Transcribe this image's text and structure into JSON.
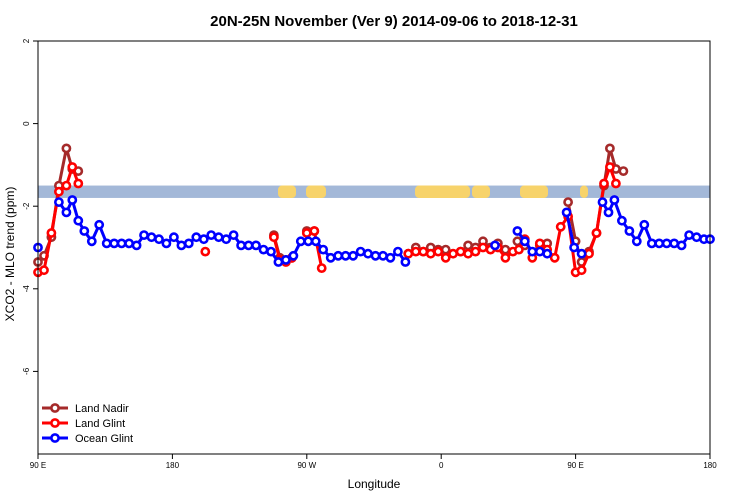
{
  "chart_data": {
    "type": "line",
    "title": "20N-25N November (Ver 9)   2014-09-06 to 2018-12-31",
    "xlabel": "Longitude",
    "ylabel": "XCO2 - MLO trend (ppm)",
    "xlim": [
      90,
      540
    ],
    "ylim": [
      -8,
      2
    ],
    "x_ticks": [
      {
        "value": 90,
        "label": "90 E"
      },
      {
        "value": 180,
        "label": "180"
      },
      {
        "value": 270,
        "label": "90 W"
      },
      {
        "value": 360,
        "label": "0"
      },
      {
        "value": 450,
        "label": "90 E"
      },
      {
        "value": 540,
        "label": "180"
      }
    ],
    "y_ticks": [
      {
        "value": 2,
        "label": "2"
      },
      {
        "value": 0,
        "label": "0"
      },
      {
        "value": -2,
        "label": "-2"
      },
      {
        "value": -4,
        "label": "-4"
      },
      {
        "value": -6,
        "label": "-6"
      }
    ],
    "legend_position": "bottom-left",
    "map_strip": {
      "ymin": -1.8,
      "ymax": -1.5,
      "ocean_color": "#a3b8d8",
      "land_color": "#f7d36b"
    },
    "series": [
      {
        "name": "Land Nadir",
        "color": "#a52a2a",
        "segments": [
          [
            [
              90,
              -3.35
            ],
            [
              94,
              -3.2
            ],
            [
              99,
              -2.75
            ],
            [
              104,
              -1.5
            ],
            [
              109,
              -0.6
            ],
            [
              113,
              -1.1
            ],
            [
              117,
              -1.15
            ]
          ],
          [
            [
              248,
              -2.7
            ],
            [
              252,
              -3.25
            ],
            [
              256,
              -3.3
            ],
            [
              260,
              -3.25
            ]
          ],
          [
            [
              270,
              -2.6
            ],
            [
              275,
              -2.6
            ]
          ],
          [
            [
              338,
              -3.15
            ],
            [
              343,
              -3.0
            ],
            [
              348,
              -3.1
            ],
            [
              353,
              -3.0
            ],
            [
              358,
              -3.05
            ],
            [
              363,
              -3.05
            ]
          ],
          [
            [
              373,
              -3.1
            ],
            [
              378,
              -2.95
            ],
            [
              383,
              -3.0
            ],
            [
              388,
              -2.85
            ],
            [
              393,
              -3.0
            ],
            [
              398,
              -2.9
            ],
            [
              403,
              -3.05
            ]
          ],
          [
            [
              411,
              -2.85
            ],
            [
              416,
              -2.95
            ]
          ],
          [
            [
              426,
              -2.95
            ],
            [
              431,
              -2.9
            ]
          ],
          [
            [
              445,
              -1.9
            ],
            [
              450,
              -2.85
            ],
            [
              454,
              -3.35
            ],
            [
              459,
              -3.1
            ],
            [
              464,
              -2.65
            ],
            [
              469,
              -1.5
            ],
            [
              473,
              -0.6
            ],
            [
              477,
              -1.1
            ],
            [
              482,
              -1.15
            ]
          ]
        ]
      },
      {
        "name": "Land Glint",
        "color": "#ff0000",
        "segments": [
          [
            [
              90,
              -3.6
            ],
            [
              94,
              -3.55
            ],
            [
              99,
              -2.65
            ],
            [
              104,
              -1.65
            ],
            [
              109,
              -1.5
            ],
            [
              113,
              -1.05
            ],
            [
              117,
              -1.45
            ]
          ],
          [
            [
              202,
              -3.1
            ]
          ],
          [
            [
              248,
              -2.75
            ],
            [
              252,
              -3.3
            ],
            [
              256,
              -3.35
            ],
            [
              260,
              -3.25
            ]
          ],
          [
            [
              270,
              -2.65
            ],
            [
              275,
              -2.6
            ],
            [
              280,
              -3.5
            ]
          ],
          [
            [
              338,
              -3.15
            ],
            [
              343,
              -3.1
            ],
            [
              348,
              -3.1
            ],
            [
              353,
              -3.15
            ],
            [
              358,
              -3.1
            ],
            [
              363,
              -3.25
            ],
            [
              368,
              -3.15
            ],
            [
              373,
              -3.1
            ],
            [
              378,
              -3.15
            ],
            [
              383,
              -3.1
            ],
            [
              388,
              -3.0
            ],
            [
              393,
              -3.05
            ],
            [
              398,
              -3.0
            ],
            [
              403,
              -3.25
            ],
            [
              408,
              -3.1
            ],
            [
              412,
              -3.05
            ],
            [
              416,
              -2.8
            ]
          ],
          [
            [
              421,
              -3.25
            ],
            [
              426,
              -2.9
            ],
            [
              431,
              -3.05
            ],
            [
              436,
              -3.25
            ],
            [
              440,
              -2.5
            ],
            [
              445,
              -2.25
            ],
            [
              450,
              -3.6
            ],
            [
              454,
              -3.55
            ],
            [
              459,
              -3.15
            ],
            [
              464,
              -2.65
            ],
            [
              469,
              -1.45
            ],
            [
              473,
              -1.05
            ],
            [
              477,
              -1.45
            ]
          ]
        ]
      },
      {
        "name": "Ocean Glint",
        "color": "#0000ff",
        "segments": [
          [
            [
              90,
              -3.0
            ]
          ],
          [
            [
              104,
              -1.9
            ],
            [
              109,
              -2.15
            ],
            [
              113,
              -1.85
            ],
            [
              117,
              -2.35
            ],
            [
              121,
              -2.6
            ],
            [
              126,
              -2.85
            ],
            [
              131,
              -2.45
            ],
            [
              136,
              -2.9
            ],
            [
              141,
              -2.9
            ],
            [
              146,
              -2.9
            ],
            [
              151,
              -2.9
            ],
            [
              156,
              -2.95
            ],
            [
              161,
              -2.7
            ],
            [
              166,
              -2.75
            ],
            [
              171,
              -2.8
            ],
            [
              176,
              -2.9
            ],
            [
              181,
              -2.75
            ],
            [
              186,
              -2.95
            ],
            [
              191,
              -2.9
            ],
            [
              196,
              -2.75
            ],
            [
              201,
              -2.8
            ],
            [
              206,
              -2.7
            ],
            [
              211,
              -2.75
            ],
            [
              216,
              -2.8
            ],
            [
              221,
              -2.7
            ],
            [
              226,
              -2.95
            ],
            [
              231,
              -2.95
            ],
            [
              236,
              -2.95
            ],
            [
              241,
              -3.05
            ],
            [
              246,
              -3.1
            ],
            [
              251,
              -3.35
            ],
            [
              256,
              -3.3
            ],
            [
              261,
              -3.2
            ],
            [
              266,
              -2.85
            ],
            [
              271,
              -2.85
            ],
            [
              276,
              -2.85
            ],
            [
              281,
              -3.05
            ],
            [
              286,
              -3.25
            ],
            [
              291,
              -3.2
            ],
            [
              296,
              -3.2
            ],
            [
              301,
              -3.2
            ],
            [
              306,
              -3.1
            ],
            [
              311,
              -3.15
            ],
            [
              316,
              -3.2
            ],
            [
              321,
              -3.2
            ],
            [
              326,
              -3.25
            ],
            [
              331,
              -3.1
            ],
            [
              336,
              -3.35
            ]
          ],
          [
            [
              396,
              -2.95
            ]
          ],
          [
            [
              411,
              -2.6
            ],
            [
              416,
              -2.85
            ],
            [
              421,
              -3.1
            ],
            [
              426,
              -3.1
            ],
            [
              431,
              -3.15
            ]
          ],
          [
            [
              444,
              -2.15
            ],
            [
              449,
              -3.0
            ],
            [
              454,
              -3.15
            ]
          ],
          [
            [
              468,
              -1.9
            ],
            [
              472,
              -2.15
            ],
            [
              476,
              -1.85
            ],
            [
              481,
              -2.35
            ],
            [
              486,
              -2.6
            ],
            [
              491,
              -2.85
            ],
            [
              496,
              -2.45
            ],
            [
              501,
              -2.9
            ],
            [
              506,
              -2.9
            ],
            [
              511,
              -2.9
            ],
            [
              516,
              -2.9
            ],
            [
              521,
              -2.95
            ],
            [
              526,
              -2.7
            ],
            [
              531,
              -2.75
            ],
            [
              536,
              -2.8
            ],
            [
              540,
              -2.8
            ]
          ]
        ]
      }
    ]
  }
}
